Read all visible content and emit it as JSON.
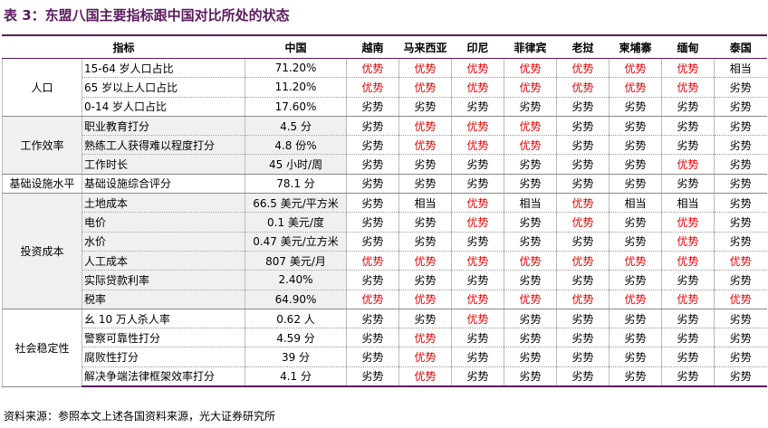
{
  "title": "表 3：东盟八国主要指标跟中国对比所处的状态",
  "colors": {
    "优势": "#e60000"
  },
  "table": {
    "header": [
      "指标",
      "中国",
      "越南",
      "马来西亚",
      "印尼",
      "菲律宾",
      "老挝",
      "柬埔寨",
      "缅甸",
      "泰国"
    ],
    "groups": [
      {
        "name": "人口",
        "rows": [
          [
            "15-64 岁人口占比",
            "71.20%",
            "优势",
            "优势",
            "优势",
            "优势",
            "优势",
            "优势",
            "优势",
            "相当"
          ],
          [
            "65 岁以上人口占比",
            "11.20%",
            "优势",
            "优势",
            "优势",
            "优势",
            "优势",
            "优势",
            "优势",
            "劣势"
          ],
          [
            "0-14 岁人口占比",
            "17.60%",
            "劣势",
            "劣势",
            "劣势",
            "劣势",
            "劣势",
            "劣势",
            "劣势",
            "劣势"
          ]
        ]
      },
      {
        "name": "工作效率",
        "rows": [
          [
            "职业教育打分",
            "4.5 分",
            "劣势",
            "优势",
            "优势",
            "优势",
            "劣势",
            "劣势",
            "劣势",
            "劣势"
          ],
          [
            "熟练工人获得难以程度打分",
            "4.8 份%",
            "劣势",
            "优势",
            "优势",
            "优势",
            "劣势",
            "劣势",
            "劣势",
            "劣势"
          ],
          [
            "工作时长",
            "45 小时/周",
            "劣势",
            "劣势",
            "劣势",
            "劣势",
            "劣势",
            "劣势",
            "优势",
            "劣势"
          ]
        ]
      },
      {
        "name": "基础设施水平",
        "rows": [
          [
            "基础设施综合评分",
            "78.1 分",
            "劣势",
            "劣势",
            "劣势",
            "劣势",
            "劣势",
            "劣势",
            "劣势",
            "劣势"
          ]
        ]
      },
      {
        "name": "投资成本",
        "rows": [
          [
            "土地成本",
            "66.5 美元/平方米",
            "劣势",
            "相当",
            "优势",
            "相当",
            "优势",
            "相当",
            "相当",
            "劣势"
          ],
          [
            "电价",
            "0.1 美元/度",
            "劣势",
            "劣势",
            "优势",
            "劣势",
            "优势",
            "劣势",
            "优势",
            "劣势"
          ],
          [
            "水价",
            "0.47 美元/立方米",
            "劣势",
            "劣势",
            "劣势",
            "劣势",
            "劣势",
            "劣势",
            "优势",
            "劣势"
          ],
          [
            "人工成本",
            "807 美元/月",
            "优势",
            "优势",
            "优势",
            "优势",
            "优势",
            "优势",
            "优势",
            "优势"
          ],
          [
            "实际贷款利率",
            "2.40%",
            "劣势",
            "劣势",
            "劣势",
            "劣势",
            "劣势",
            "劣势",
            "劣势",
            "劣势"
          ],
          [
            "税率",
            "64.90%",
            "优势",
            "优势",
            "优势",
            "优势",
            "优势",
            "优势",
            "优势",
            "优势"
          ]
        ]
      },
      {
        "name": "社会稳定性",
        "rows": [
          [
            "幺 10 万人杀人率",
            "0.62 人",
            "劣势",
            "劣势",
            "优势",
            "劣势",
            "劣势",
            "劣势",
            "劣势",
            "劣势"
          ],
          [
            "警察可靠性打分",
            "4.59 分",
            "劣势",
            "优势",
            "劣势",
            "劣势",
            "劣势",
            "劣势",
            "劣势",
            "劣势"
          ],
          [
            "腐败性打分",
            "39 分",
            "劣势",
            "优势",
            "劣势",
            "劣势",
            "劣势",
            "劣势",
            "劣势",
            "劣势"
          ],
          [
            "解决争端法律框架效率打分",
            "4.1 分",
            "劣势",
            "优势",
            "劣势",
            "劣势",
            "劣势",
            "劣势",
            "劣势",
            "劣势"
          ]
        ]
      }
    ]
  },
  "source": "资料来源：参照本文上述各国资料来源，光大证券研究所"
}
